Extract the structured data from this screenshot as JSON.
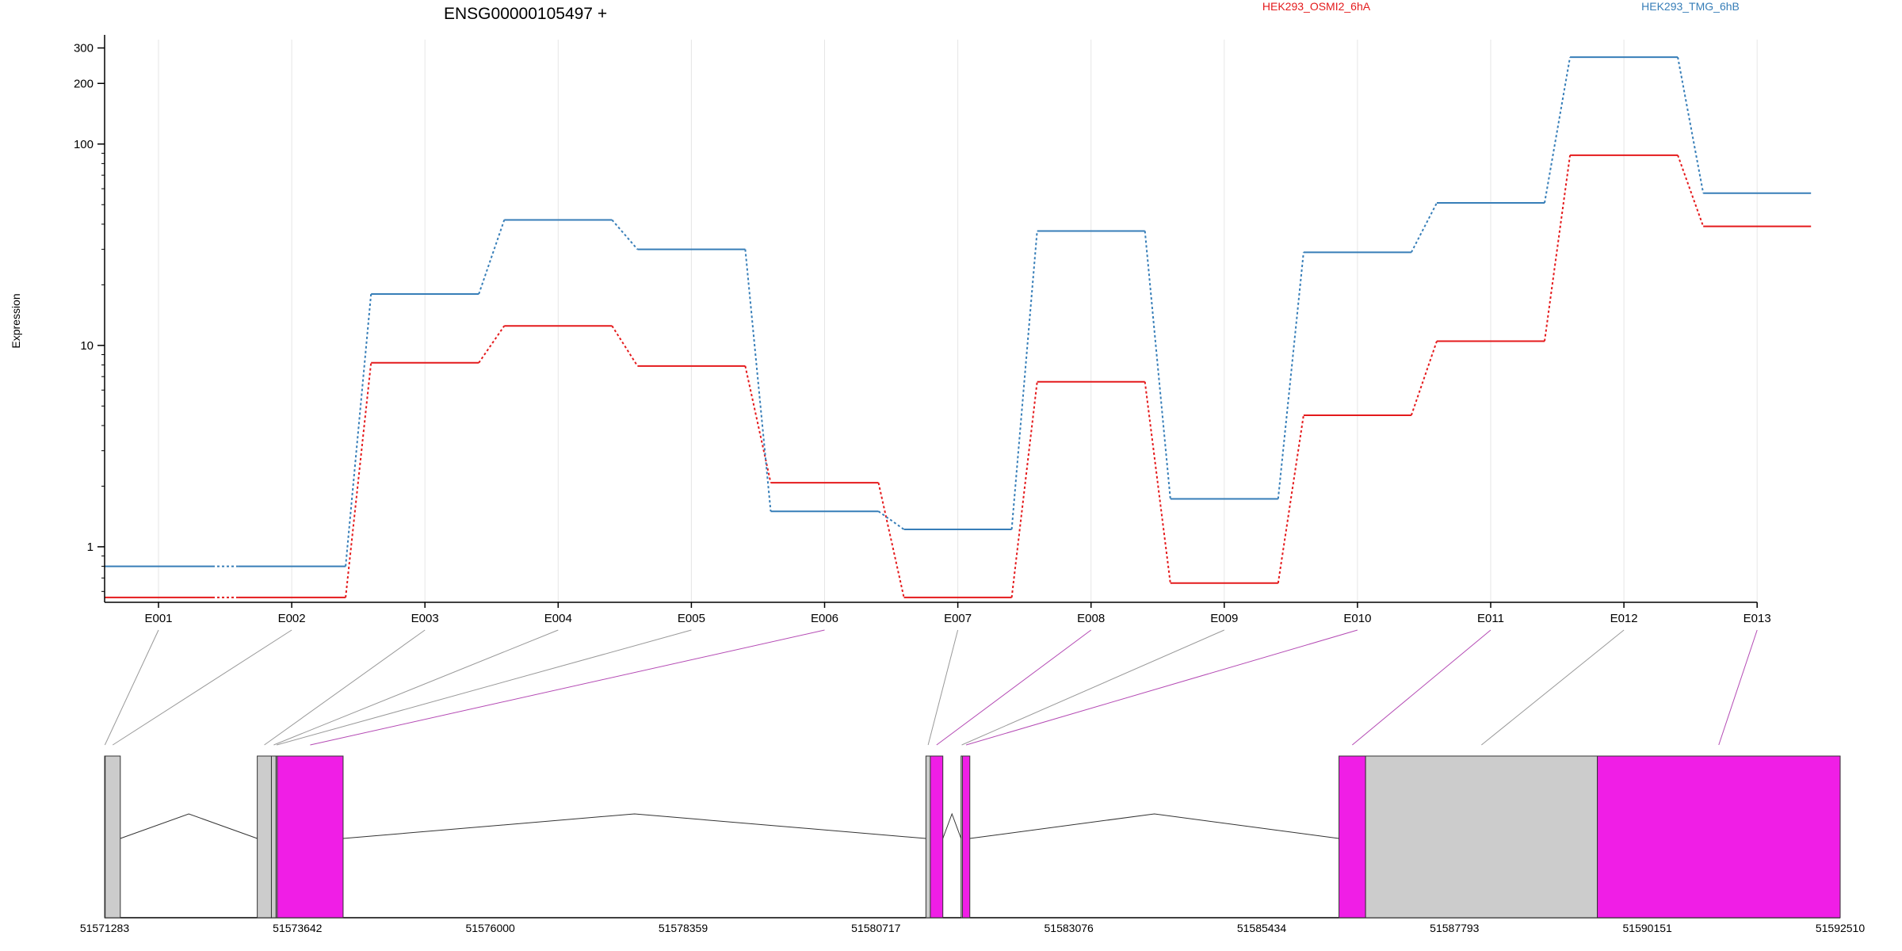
{
  "chart_data": {
    "type": "line",
    "title": "ENSG00000105497 +",
    "ylabel": "Expression",
    "xlabel": "",
    "y_scale": "log",
    "ylim": [
      0.53,
      330
    ],
    "y_ticks": [
      1,
      10,
      100,
      200,
      300
    ],
    "grid": "vertical",
    "legend_position": "top",
    "categories": [
      "E001",
      "E002",
      "E003",
      "E004",
      "E005",
      "E006",
      "E007",
      "E008",
      "E009",
      "E010",
      "E011",
      "E012",
      "E013"
    ],
    "series": [
      {
        "name": "HEK293_OSMI2_6hA",
        "color": "#e41a1c",
        "values": [
          0.56,
          0.56,
          8.2,
          12.5,
          7.9,
          2.08,
          0.56,
          6.6,
          0.66,
          4.5,
          10.5,
          88,
          39
        ]
      },
      {
        "name": "HEK293_TMG_6hB",
        "color": "#377eb8",
        "values": [
          0.8,
          0.8,
          18,
          42,
          30,
          1.5,
          1.22,
          37,
          1.73,
          29,
          51,
          270,
          57
        ]
      }
    ],
    "exon_track": {
      "coordinate_labels": [
        "51571283",
        "51573642",
        "51576000",
        "51578359",
        "51580717",
        "51583076",
        "51585434",
        "51587793",
        "51590151",
        "51592510"
      ],
      "genomic_start": 51571283,
      "genomic_end": 51592510,
      "exons": [
        {
          "id": "E001",
          "start": 51571283,
          "end": 51571290,
          "highlight": false
        },
        {
          "id": "E002",
          "start": 51571290,
          "end": 51571475,
          "highlight": false
        },
        {
          "id": "E003",
          "start": 51573150,
          "end": 51573323,
          "highlight": false
        },
        {
          "id": "E004",
          "start": 51573323,
          "end": 51573380,
          "highlight": false
        },
        {
          "id": "E005",
          "start": 51573380,
          "end": 51573395,
          "highlight": false
        },
        {
          "id": "E006",
          "start": 51573395,
          "end": 51574200,
          "highlight": true
        },
        {
          "id": "E007",
          "start": 51581328,
          "end": 51581382,
          "highlight": false
        },
        {
          "id": "E008",
          "start": 51581382,
          "end": 51581535,
          "highlight": true
        },
        {
          "id": "E009",
          "start": 51581758,
          "end": 51581775,
          "highlight": false
        },
        {
          "id": "E010",
          "start": 51581775,
          "end": 51581865,
          "highlight": true
        },
        {
          "id": "E011",
          "start": 51586380,
          "end": 51586705,
          "highlight": true
        },
        {
          "id": "E012",
          "start": 51586705,
          "end": 51589540,
          "highlight": false
        },
        {
          "id": "E013",
          "start": 51589540,
          "end": 51592510,
          "highlight": true
        }
      ],
      "colors": {
        "highlight": "#f01ee6",
        "normal": "#cccccc",
        "connector_highlight": "#b44ab4",
        "connector_normal": "#999999"
      }
    }
  }
}
